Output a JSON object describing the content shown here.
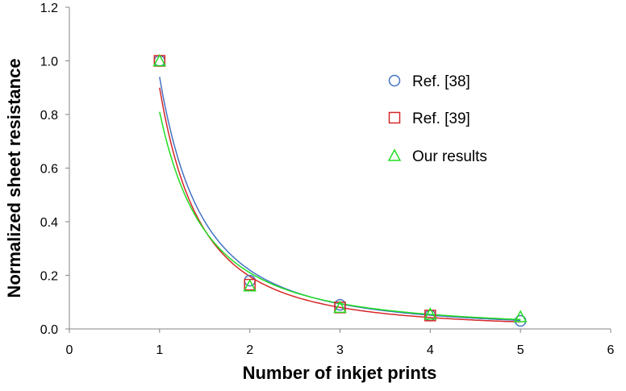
{
  "chart_data": {
    "type": "scatter",
    "title": "",
    "xlabel": "Number of inkjet prints",
    "ylabel": "Normalized sheet resistance",
    "xlim": [
      0,
      6
    ],
    "ylim": [
      0,
      1.2
    ],
    "x_ticks": [
      "0",
      "1",
      "2",
      "3",
      "4",
      "5",
      "6"
    ],
    "y_ticks": [
      "0.0",
      "0.2",
      "0.4",
      "0.6",
      "0.8",
      "1.0",
      "1.2"
    ],
    "grid": false,
    "legend_position": "right",
    "series": [
      {
        "name": "Ref. [38]",
        "marker": "circle",
        "color": "#4472C4",
        "x": [
          1,
          2,
          3,
          4,
          5
        ],
        "y": [
          1.0,
          0.18,
          0.09,
          0.05,
          0.03
        ],
        "fit": {
          "a": 0.94,
          "b": 2.1
        }
      },
      {
        "name": "Ref. [39]",
        "marker": "square",
        "color": "#D62728",
        "x": [
          1,
          2,
          3,
          4
        ],
        "y": [
          1.0,
          0.165,
          0.08,
          0.05
        ],
        "fit": {
          "a": 0.9,
          "b": 2.2
        }
      },
      {
        "name": "Our results",
        "marker": "triangle",
        "color": "#22DD22",
        "x": [
          1,
          2,
          3,
          4,
          5
        ],
        "y": [
          1.0,
          0.16,
          0.08,
          0.055,
          0.045
        ],
        "fit": {
          "a": 0.81,
          "b": 1.95
        }
      }
    ]
  }
}
